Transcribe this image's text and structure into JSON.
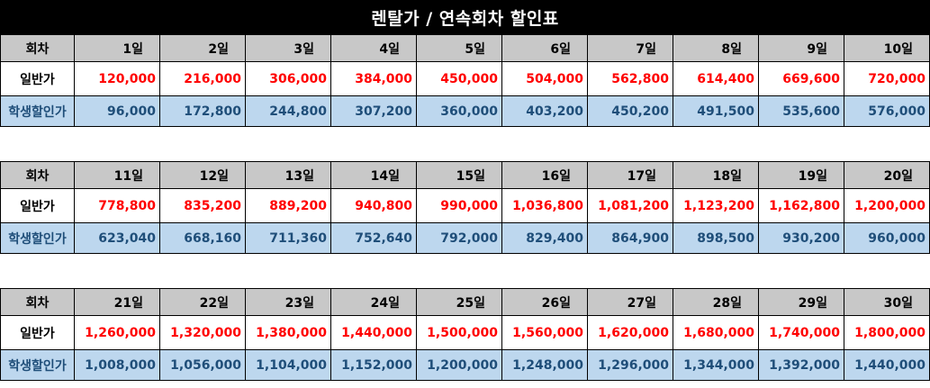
{
  "title": "렌탈가 / 연속회차 할인표",
  "labels": {
    "session": "회차",
    "regular": "일반가",
    "student": "학생할인가"
  },
  "colors": {
    "regular_price": "#ff0000",
    "student_price": "#1f4e79",
    "header_bg": "#c8c8c8",
    "student_bg": "#bdd7ee",
    "title_bg": "#000000"
  },
  "blocks": [
    {
      "days": [
        "1일",
        "2일",
        "3일",
        "4일",
        "5일",
        "6일",
        "7일",
        "8일",
        "9일",
        "10일"
      ],
      "regular": [
        "120,000",
        "216,000",
        "306,000",
        "384,000",
        "450,000",
        "504,000",
        "562,800",
        "614,400",
        "669,600",
        "720,000"
      ],
      "student": [
        "96,000",
        "172,800",
        "244,800",
        "307,200",
        "360,000",
        "403,200",
        "450,200",
        "491,500",
        "535,600",
        "576,000"
      ]
    },
    {
      "days": [
        "11일",
        "12일",
        "13일",
        "14일",
        "15일",
        "16일",
        "17일",
        "18일",
        "19일",
        "20일"
      ],
      "regular": [
        "778,800",
        "835,200",
        "889,200",
        "940,800",
        "990,000",
        "1,036,800",
        "1,081,200",
        "1,123,200",
        "1,162,800",
        "1,200,000"
      ],
      "student": [
        "623,040",
        "668,160",
        "711,360",
        "752,640",
        "792,000",
        "829,400",
        "864,900",
        "898,500",
        "930,200",
        "960,000"
      ]
    },
    {
      "days": [
        "21일",
        "22일",
        "23일",
        "24일",
        "25일",
        "26일",
        "27일",
        "28일",
        "29일",
        "30일"
      ],
      "regular": [
        "1,260,000",
        "1,320,000",
        "1,380,000",
        "1,440,000",
        "1,500,000",
        "1,560,000",
        "1,620,000",
        "1,680,000",
        "1,740,000",
        "1,800,000"
      ],
      "student": [
        "1,008,000",
        "1,056,000",
        "1,104,000",
        "1,152,000",
        "1,200,000",
        "1,248,000",
        "1,296,000",
        "1,344,000",
        "1,392,000",
        "1,440,000"
      ]
    }
  ]
}
